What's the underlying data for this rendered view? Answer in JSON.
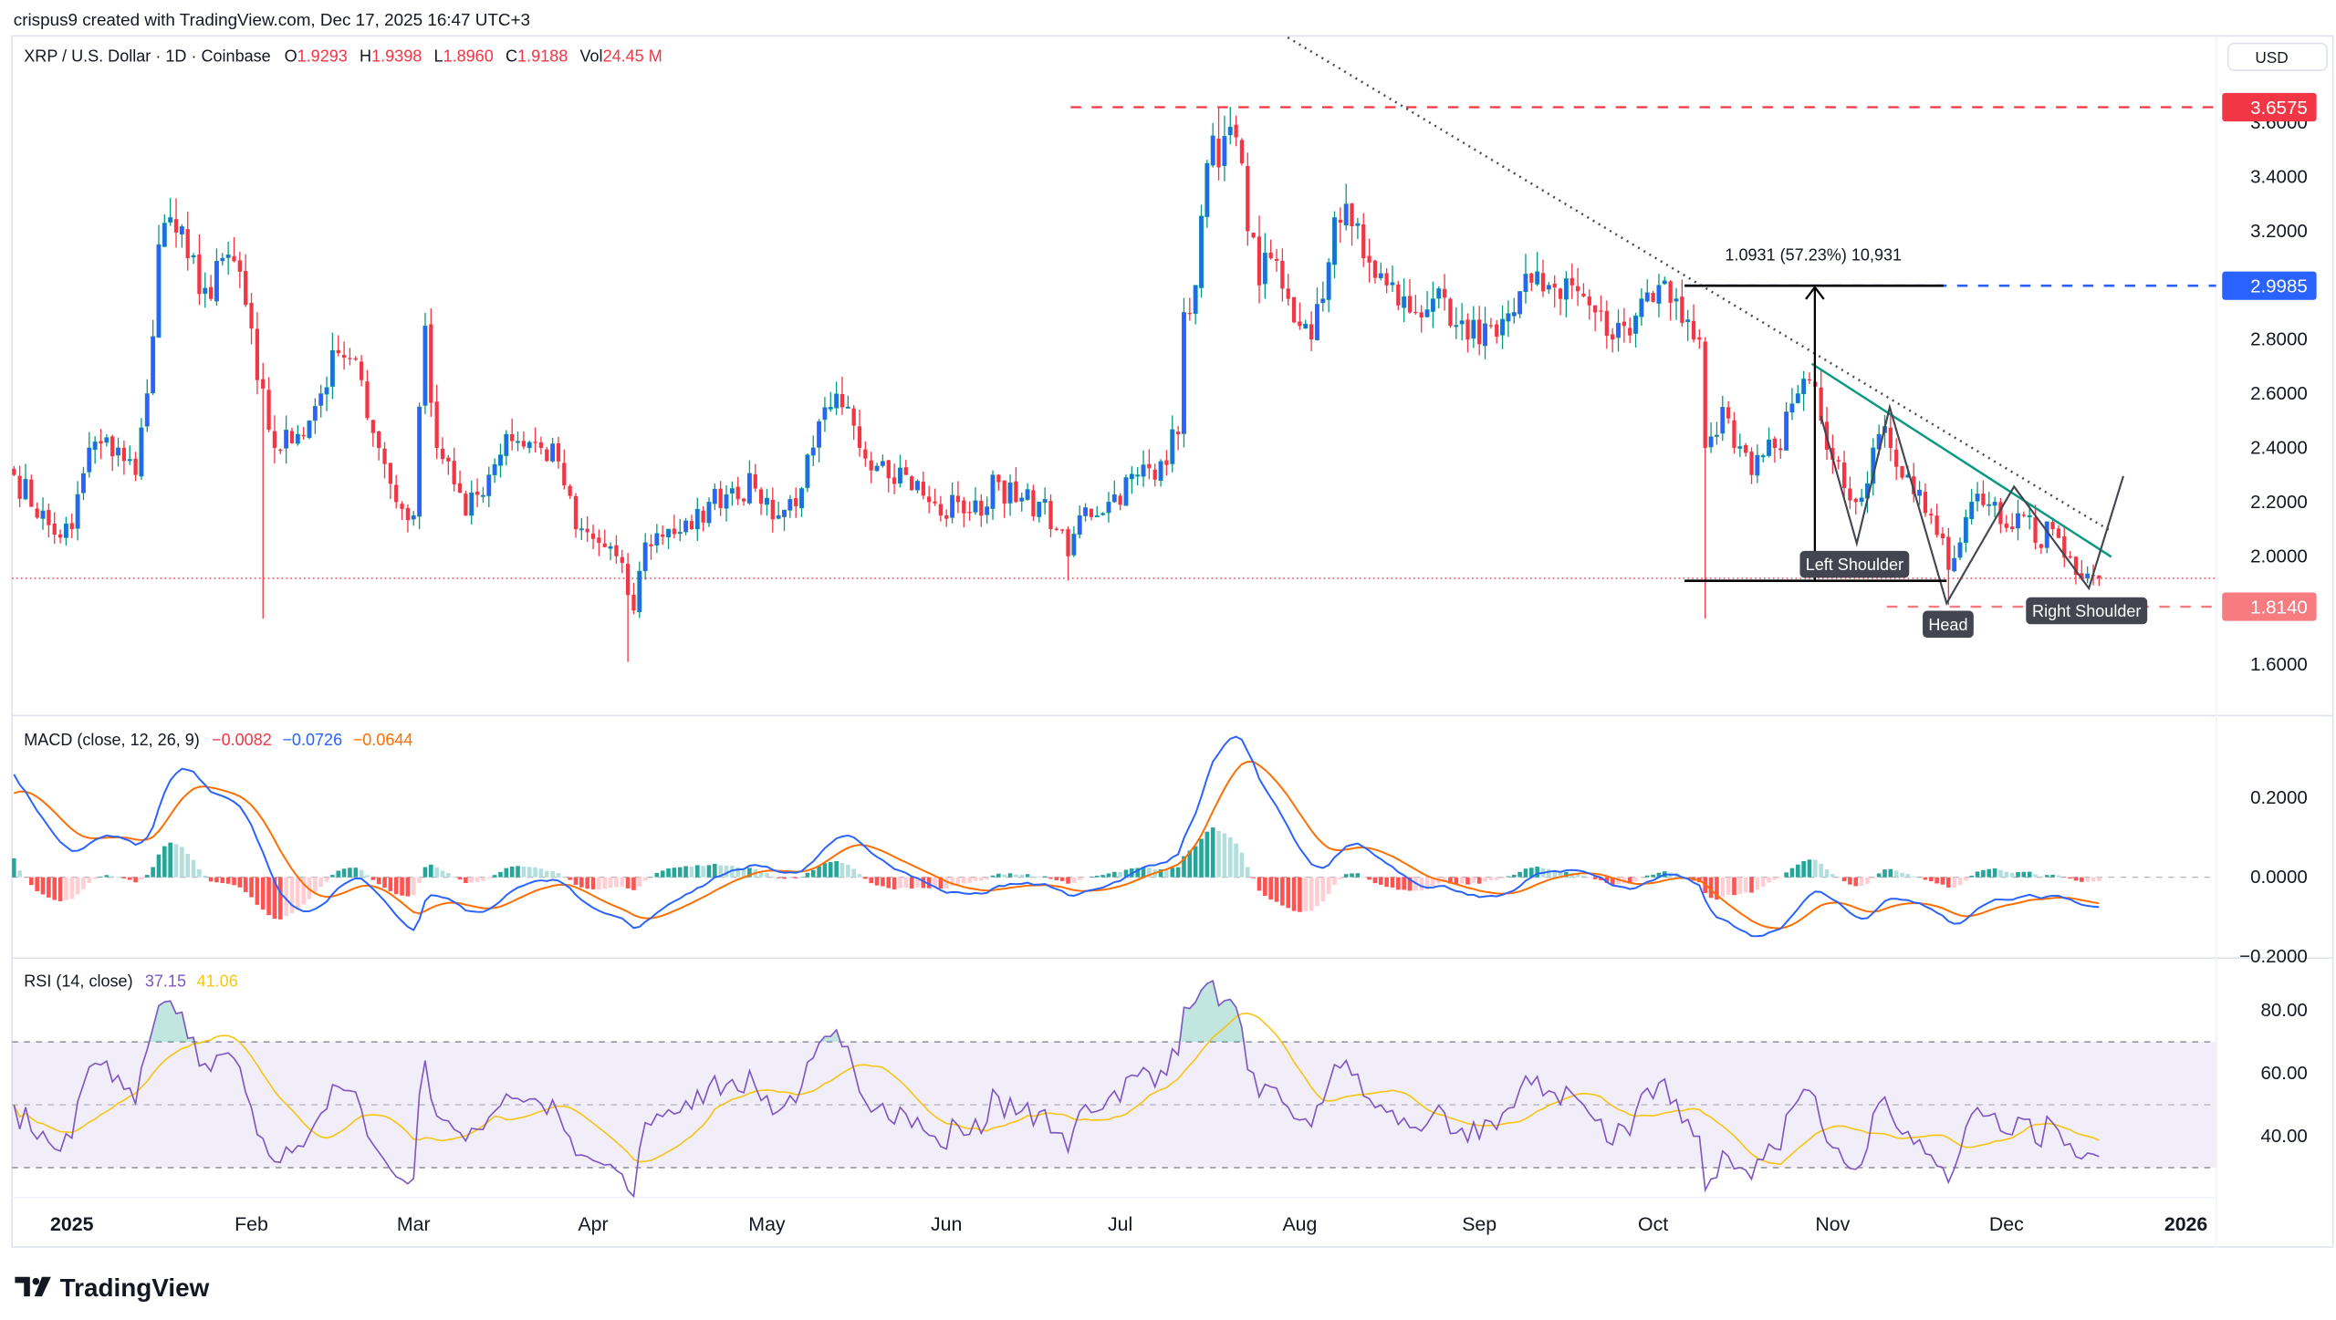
{
  "header": {
    "credit": "crispus9 created with TradingView.com, Dec 17, 2025 16:47 UTC+3",
    "symbol": "XRP / U.S. Dollar · 1D · Coinbase",
    "o_label": "O",
    "o": "1.9293",
    "h_label": "H",
    "h": "1.9398",
    "l_label": "L",
    "l": "1.8960",
    "c_label": "C",
    "c": "1.9188",
    "vol_label": "Vol",
    "vol": "24.45 M",
    "currency_button": "USD"
  },
  "logo": {
    "text": "TradingView"
  },
  "colors": {
    "up_body": "#2962ff",
    "up_wick": "#089981",
    "down": "#f23645",
    "macd": "#2962ff",
    "signal": "#ff6d00",
    "hist_up_strong": "#26a69a",
    "hist_up_weak": "#b2dfdb",
    "hist_down_strong": "#ff5252",
    "hist_down_weak": "#ffcdd2",
    "rsi": "#7e57c2",
    "rsi_ma": "#f5c518",
    "level_high": "#f23645",
    "level_target": "#2962ff",
    "level_low": "#f77c80",
    "trendline": "#089981"
  },
  "chart_data": [
    {
      "type": "candlestick",
      "title": "XRP / U.S. Dollar · 1D · Coinbase",
      "ylim": [
        1.5,
        3.75
      ],
      "yticks": [
        "3.6000",
        "3.4000",
        "3.2000",
        "2.8000",
        "2.6000",
        "2.4000",
        "2.2000",
        "2.0000",
        "1.6000"
      ],
      "xticks": [
        {
          "label": "2025",
          "date": "2025-01-01",
          "bold": true
        },
        {
          "label": "Feb",
          "date": "2025-02-01"
        },
        {
          "label": "Mar",
          "date": "2025-03-01"
        },
        {
          "label": "Apr",
          "date": "2025-04-01"
        },
        {
          "label": "May",
          "date": "2025-05-01"
        },
        {
          "label": "Jun",
          "date": "2025-06-01"
        },
        {
          "label": "Jul",
          "date": "2025-07-01"
        },
        {
          "label": "Aug",
          "date": "2025-08-01"
        },
        {
          "label": "Sep",
          "date": "2025-09-01"
        },
        {
          "label": "Oct",
          "date": "2025-10-01"
        },
        {
          "label": "Nov",
          "date": "2025-11-01"
        },
        {
          "label": "Dec",
          "date": "2025-12-01"
        },
        {
          "label": "2026",
          "date": "2026-01-01",
          "bold": true
        }
      ],
      "approx_closes": [
        [
          "2024-12-22",
          2.3
        ],
        [
          "2024-12-29",
          2.08
        ],
        [
          "2025-01-01",
          2.1
        ],
        [
          "2025-01-04",
          2.4
        ],
        [
          "2025-01-09",
          2.4
        ],
        [
          "2025-01-12",
          2.3
        ],
        [
          "2025-01-14",
          2.6
        ],
        [
          "2025-01-16",
          3.15
        ],
        [
          "2025-01-18",
          3.25
        ],
        [
          "2025-01-21",
          3.1
        ],
        [
          "2025-01-25",
          2.95
        ],
        [
          "2025-01-27",
          3.1
        ],
        [
          "2025-01-30",
          3.05
        ],
        [
          "2025-02-02",
          2.65
        ],
        [
          "2025-02-05",
          2.4
        ],
        [
          "2025-02-09",
          2.45
        ],
        [
          "2025-02-13",
          2.6
        ],
        [
          "2025-02-16",
          2.75
        ],
        [
          "2025-02-20",
          2.65
        ],
        [
          "2025-02-23",
          2.4
        ],
        [
          "2025-02-26",
          2.2
        ],
        [
          "2025-03-01",
          2.15
        ],
        [
          "2025-03-03",
          2.85
        ],
        [
          "2025-03-05",
          2.4
        ],
        [
          "2025-03-07",
          2.35
        ],
        [
          "2025-03-10",
          2.15
        ],
        [
          "2025-03-14",
          2.3
        ],
        [
          "2025-03-17",
          2.45
        ],
        [
          "2025-03-23",
          2.4
        ],
        [
          "2025-03-26",
          2.35
        ],
        [
          "2025-03-29",
          2.1
        ],
        [
          "2025-04-02",
          2.05
        ],
        [
          "2025-04-05",
          2.0
        ],
        [
          "2025-04-08",
          1.8
        ],
        [
          "2025-04-10",
          2.05
        ],
        [
          "2025-04-14",
          2.1
        ],
        [
          "2025-04-18",
          2.1
        ],
        [
          "2025-04-21",
          2.2
        ],
        [
          "2025-04-25",
          2.25
        ],
        [
          "2025-04-29",
          2.25
        ],
        [
          "2025-05-03",
          2.15
        ],
        [
          "2025-05-07",
          2.25
        ],
        [
          "2025-05-09",
          2.4
        ],
        [
          "2025-05-12",
          2.55
        ],
        [
          "2025-05-14",
          2.55
        ],
        [
          "2025-05-17",
          2.4
        ],
        [
          "2025-05-21",
          2.35
        ],
        [
          "2025-05-25",
          2.3
        ],
        [
          "2025-05-29",
          2.2
        ],
        [
          "2025-05-31",
          2.15
        ],
        [
          "2025-06-03",
          2.2
        ],
        [
          "2025-06-07",
          2.15
        ],
        [
          "2025-06-09",
          2.3
        ],
        [
          "2025-06-13",
          2.2
        ],
        [
          "2025-06-17",
          2.2
        ],
        [
          "2025-06-20",
          2.1
        ],
        [
          "2025-06-22",
          2.0
        ],
        [
          "2025-06-24",
          2.15
        ],
        [
          "2025-06-29",
          2.2
        ],
        [
          "2025-07-04",
          2.3
        ],
        [
          "2025-07-08",
          2.35
        ],
        [
          "2025-07-11",
          2.45
        ],
        [
          "2025-07-12",
          2.9
        ],
        [
          "2025-07-14",
          3.0
        ],
        [
          "2025-07-16",
          3.45
        ],
        [
          "2025-07-19",
          3.55
        ],
        [
          "2025-07-22",
          3.45
        ],
        [
          "2025-07-23",
          3.2
        ],
        [
          "2025-07-25",
          3.0
        ],
        [
          "2025-07-27",
          3.1
        ],
        [
          "2025-07-30",
          2.95
        ],
        [
          "2025-08-01",
          2.85
        ],
        [
          "2025-08-03",
          2.8
        ],
        [
          "2025-08-05",
          2.95
        ],
        [
          "2025-08-07",
          3.25
        ],
        [
          "2025-08-09",
          3.3
        ],
        [
          "2025-08-12",
          3.1
        ],
        [
          "2025-08-16",
          3.0
        ],
        [
          "2025-08-20",
          2.9
        ],
        [
          "2025-08-24",
          2.95
        ],
        [
          "2025-08-27",
          2.85
        ],
        [
          "2025-08-30",
          2.8
        ],
        [
          "2025-09-03",
          2.85
        ],
        [
          "2025-09-07",
          2.9
        ],
        [
          "2025-09-11",
          3.05
        ],
        [
          "2025-09-13",
          3.0
        ],
        [
          "2025-09-17",
          3.0
        ],
        [
          "2025-09-21",
          2.9
        ],
        [
          "2025-09-24",
          2.8
        ],
        [
          "2025-09-26",
          2.85
        ],
        [
          "2025-09-29",
          2.95
        ],
        [
          "2025-10-02",
          3.0
        ],
        [
          "2025-10-05",
          2.95
        ],
        [
          "2025-10-08",
          2.8
        ],
        [
          "2025-10-09",
          2.8
        ],
        [
          "2025-10-10",
          2.4
        ],
        [
          "2025-10-13",
          2.55
        ],
        [
          "2025-10-15",
          2.4
        ],
        [
          "2025-10-18",
          2.3
        ],
        [
          "2025-10-22",
          2.4
        ],
        [
          "2025-10-26",
          2.6
        ],
        [
          "2025-10-28",
          2.65
        ],
        [
          "2025-10-30",
          2.5
        ],
        [
          "2025-11-02",
          2.35
        ],
        [
          "2025-11-05",
          2.2
        ],
        [
          "2025-11-09",
          2.45
        ],
        [
          "2025-11-11",
          2.4
        ],
        [
          "2025-11-14",
          2.3
        ],
        [
          "2025-11-18",
          2.15
        ],
        [
          "2025-11-21",
          1.95
        ],
        [
          "2025-11-23",
          2.05
        ],
        [
          "2025-11-25",
          2.2
        ],
        [
          "2025-11-29",
          2.2
        ],
        [
          "2025-12-02",
          2.1
        ],
        [
          "2025-12-04",
          2.15
        ],
        [
          "2025-12-06",
          2.05
        ],
        [
          "2025-12-09",
          2.1
        ],
        [
          "2025-12-12",
          2.0
        ],
        [
          "2025-12-14",
          1.92
        ],
        [
          "2025-12-16",
          1.93
        ],
        [
          "2025-12-17",
          1.9188
        ]
      ],
      "wick_extremes": [
        {
          "date": "2025-02-03",
          "low": 1.77
        },
        {
          "date": "2025-04-07",
          "low": 1.61
        },
        {
          "date": "2025-06-22",
          "low": 1.91
        },
        {
          "date": "2025-07-18",
          "high": 3.6575
        },
        {
          "date": "2025-10-10",
          "low": 1.77
        },
        {
          "date": "2025-11-21",
          "low": 1.82
        }
      ],
      "current_price": 1.9188,
      "levels": [
        {
          "name": "high",
          "value": 3.6575,
          "label": "3.6575"
        },
        {
          "name": "target",
          "value": 2.9985,
          "label": "2.9985"
        },
        {
          "name": "low",
          "value": 1.814,
          "label": "1.8140"
        }
      ],
      "measure": {
        "text": "1.0931 (57.23%) 10,931",
        "from": 1.905,
        "to": 2.9985
      },
      "annotations": [
        "Left Shoulder",
        "Head",
        "Right Shoulder"
      ]
    },
    {
      "type": "line",
      "title": "MACD (close, 12, 26, 9)",
      "values_shown": {
        "histogram": "−0.0082",
        "macd": "−0.0726",
        "signal": "−0.0644"
      },
      "yticks": [
        "0.2000",
        "0.0000",
        "−0.2000"
      ],
      "params": [
        12,
        26,
        9
      ]
    },
    {
      "type": "line",
      "title": "RSI (14, close)",
      "values_shown": {
        "rsi": "37.15",
        "ma": "41.06"
      },
      "yticks": [
        "80.00",
        "60.00",
        "40.00"
      ],
      "bands": [
        30,
        50,
        70
      ],
      "period": 14
    }
  ]
}
